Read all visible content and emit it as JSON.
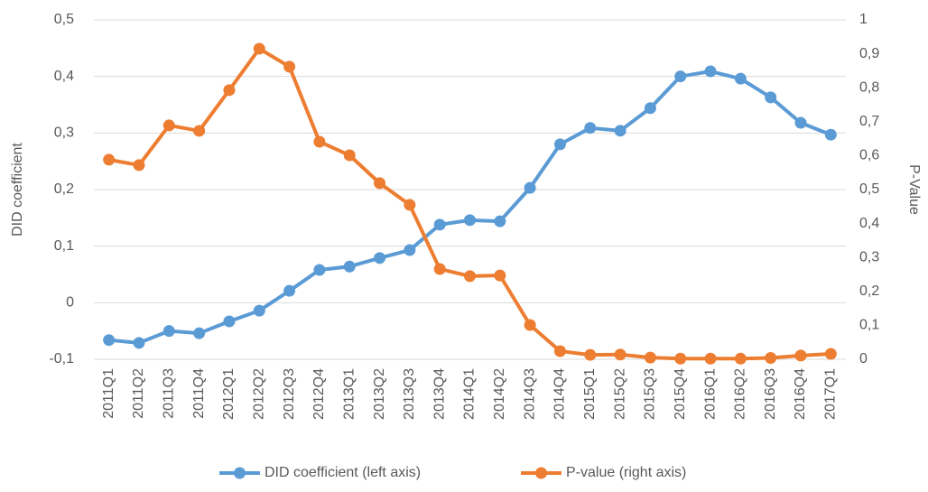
{
  "chart_data": {
    "type": "line",
    "categories": [
      "2011Q1",
      "2011Q2",
      "2011Q3",
      "2011Q4",
      "2012Q1",
      "2012Q2",
      "2012Q3",
      "2012Q4",
      "2013Q1",
      "2013Q2",
      "2013Q3",
      "2013Q4",
      "2014Q1",
      "2014Q2",
      "2014Q3",
      "2014Q4",
      "2015Q1",
      "2015Q2",
      "2015Q3",
      "2015Q4",
      "2016Q1",
      "2016Q2",
      "2016Q3",
      "2016Q4",
      "2017Q1"
    ],
    "series": [
      {
        "name": "DID coefficient (left axis)",
        "color": "#5b9bd5",
        "axis": "y",
        "values": [
          -0.066,
          -0.071,
          -0.05,
          -0.054,
          -0.033,
          -0.014,
          0.021,
          0.058,
          0.064,
          0.079,
          0.093,
          0.138,
          0.146,
          0.144,
          0.203,
          0.28,
          0.309,
          0.304,
          0.344,
          0.4,
          0.409,
          0.396,
          0.363,
          0.318,
          0.297
        ]
      },
      {
        "name": "P-value (right axis)",
        "color": "#ed7d31",
        "axis": "y2",
        "values": [
          0.588,
          0.572,
          0.689,
          0.673,
          0.793,
          0.915,
          0.862,
          0.641,
          0.601,
          0.519,
          0.455,
          0.266,
          0.245,
          0.247,
          0.101,
          0.024,
          0.013,
          0.014,
          0.005,
          0.002,
          0.002,
          0.002,
          0.004,
          0.011,
          0.016
        ]
      }
    ],
    "ylabel": "DID coefficient",
    "y2label": "P-Value",
    "ylim": [
      -0.1,
      0.5
    ],
    "yticks": [
      {
        "value": -0.1,
        "label": "-0,1"
      },
      0,
      {
        "value": 0.1,
        "label": "0,1"
      },
      {
        "value": 0.2,
        "label": "0,2"
      },
      {
        "value": 0.3,
        "label": "0,3"
      },
      {
        "value": 0.4,
        "label": "0,4"
      },
      {
        "value": 0.5,
        "label": "0,5"
      }
    ],
    "y2lim": [
      0,
      1
    ],
    "y2ticks": [
      0,
      {
        "value": 0.1,
        "label": "0,1"
      },
      {
        "value": 0.2,
        "label": "0,2"
      },
      {
        "value": 0.3,
        "label": "0,3"
      },
      {
        "value": 0.4,
        "label": "0,4"
      },
      {
        "value": 0.5,
        "label": "0,5"
      },
      {
        "value": 0.6,
        "label": "0,6"
      },
      {
        "value": 0.7,
        "label": "0,7"
      },
      {
        "value": 0.8,
        "label": "0,8"
      },
      {
        "value": 0.9,
        "label": "0,9"
      },
      1
    ],
    "grid": true,
    "legend": "bottom"
  }
}
